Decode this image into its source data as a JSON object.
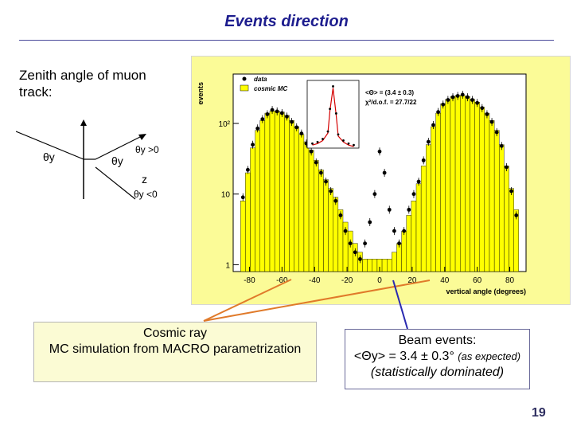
{
  "slide": {
    "title": "Events direction",
    "subtitle": "Zenith angle of muon track:",
    "page_number": "19"
  },
  "diagram": {
    "theta_left": "θy",
    "theta_mid": "θy",
    "theta_pos": "θy >0",
    "z_label": "z",
    "theta_neg": "θy <0"
  },
  "captions": {
    "cosmic_line1": "Cosmic ray",
    "cosmic_line2": "MC simulation from MACRO parametrization",
    "beam_line1": "Beam events:",
    "beam_prefix": "<Θy> = 3.4 ± 0.3°",
    "beam_note": "(as expected)",
    "beam_line3": "(statistically dominated)"
  },
  "colors": {
    "title": "#1d1d8e",
    "histogram_fill": "#ffff00",
    "plot_background": "#fbfb97",
    "arrow": "#e07a2a",
    "beam_arrow": "#2a2ab0"
  },
  "chart_data": {
    "type": "bar",
    "title": "",
    "xlabel": "vertical angle (degrees)",
    "ylabel": "events",
    "xlim": [
      -90,
      90
    ],
    "ylim": [
      0.8,
      500
    ],
    "yscale": "log",
    "x_ticks": [
      "-80",
      "-60",
      "-40",
      "-20",
      "0",
      "20",
      "40",
      "60",
      "80"
    ],
    "y_ticks": [
      "1",
      "10",
      "10²"
    ],
    "legend": [
      "data",
      "cosmic MC"
    ],
    "legend_position": "top-left",
    "series": [
      {
        "name": "cosmic MC",
        "x": [
          -84,
          -81,
          -78,
          -75,
          -72,
          -69,
          -66,
          -63,
          -60,
          -57,
          -54,
          -51,
          -48,
          -45,
          -42,
          -39,
          -36,
          -33,
          -30,
          -27,
          -24,
          -21,
          -18,
          -15,
          -12,
          -9,
          -6,
          -3,
          0,
          3,
          6,
          9,
          12,
          15,
          18,
          21,
          24,
          27,
          30,
          33,
          36,
          39,
          42,
          45,
          48,
          51,
          54,
          57,
          60,
          63,
          66,
          69,
          72,
          75,
          78,
          81,
          84
        ],
        "values": [
          8,
          20,
          45,
          80,
          110,
          140,
          150,
          150,
          145,
          130,
          110,
          90,
          70,
          55,
          42,
          30,
          22,
          16,
          12,
          9,
          6,
          4,
          3,
          2,
          1.5,
          1.2,
          1.2,
          1.2,
          1.2,
          1.2,
          1.2,
          1.5,
          2,
          3,
          5,
          8,
          14,
          25,
          50,
          90,
          140,
          190,
          220,
          240,
          250,
          250,
          240,
          220,
          200,
          170,
          140,
          110,
          80,
          50,
          25,
          12,
          6
        ]
      },
      {
        "name": "data",
        "x": [
          -84,
          -81,
          -78,
          -75,
          -72,
          -69,
          -66,
          -63,
          -60,
          -57,
          -54,
          -51,
          -48,
          -45,
          -42,
          -39,
          -36,
          -33,
          -30,
          -27,
          -24,
          -21,
          -18,
          -15,
          -12,
          -9,
          -6,
          -3,
          0,
          3,
          6,
          9,
          12,
          15,
          18,
          21,
          24,
          27,
          30,
          33,
          36,
          39,
          42,
          45,
          48,
          51,
          54,
          57,
          60,
          63,
          66,
          69,
          72,
          75,
          78,
          81,
          84
        ],
        "values": [
          9,
          22,
          50,
          85,
          115,
          135,
          155,
          148,
          140,
          125,
          105,
          88,
          72,
          52,
          40,
          28,
          20,
          15,
          11,
          8,
          5,
          3,
          2,
          1.5,
          1.2,
          2,
          4,
          10,
          40,
          20,
          6,
          3,
          2,
          3,
          6,
          10,
          15,
          30,
          55,
          95,
          145,
          185,
          215,
          235,
          245,
          255,
          235,
          215,
          195,
          165,
          135,
          105,
          75,
          48,
          24,
          11,
          5
        ]
      }
    ],
    "inset": {
      "annotation_1": "<Θ> = (3.4 ± 0.3)",
      "annotation_2": "χ²/d.o.f. = 27.7/22",
      "x": [
        -20,
        -15,
        -10,
        -5,
        -3,
        0,
        3,
        5,
        10,
        15,
        20
      ],
      "values": [
        2,
        3,
        5,
        10,
        25,
        40,
        22,
        8,
        4,
        2,
        1
      ]
    }
  }
}
